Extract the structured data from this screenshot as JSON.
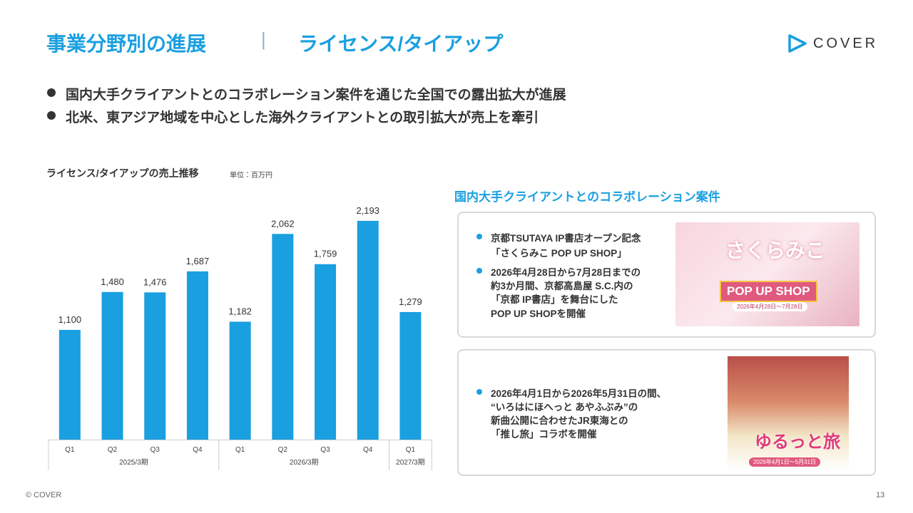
{
  "header": {
    "title": "事業分野別の進展",
    "separator": "|",
    "subtitle": "ライセンス/タイアップ",
    "logo": "COVER"
  },
  "bullets": [
    "国内大手クライアントとのコラボレーション案件を通じた全国での露出拡大が進展",
    "北米、東アジア地域を中心とした海外クライアントとの取引拡大が売上を牽引"
  ],
  "chart_data": {
    "type": "bar",
    "title": "ライセンス/タイアップの売上推移",
    "unit": "単位：百万円",
    "color": "#1a9fe0",
    "groups": [
      {
        "label": "2025/3期",
        "categories": [
          "Q1",
          "Q2",
          "Q3",
          "Q4"
        ],
        "values": [
          1100,
          1480,
          1476,
          1687
        ],
        "value_labels": [
          "1,100",
          "1,480",
          "1,476",
          "1,687"
        ]
      },
      {
        "label": "2026/3期",
        "categories": [
          "Q1",
          "Q2",
          "Q3",
          "Q4"
        ],
        "values": [
          1182,
          2062,
          1759,
          2193
        ],
        "value_labels": [
          "1,182",
          "2,062",
          "1,759",
          "2,193"
        ]
      },
      {
        "label": "2027/3期",
        "categories": [
          "Q1"
        ],
        "values": [
          1279
        ],
        "value_labels": [
          "1,279"
        ]
      }
    ]
  },
  "collab": {
    "title": "国内大手クライアントとのコラボレーション案件",
    "cards": [
      {
        "items": [
          {
            "lines": [
              "京都TSUTAYA IP書店オープン記念",
              "「さくらみこ POP UP SHOP」"
            ]
          },
          {
            "lines": [
              "2026年4月28日から7月28日までの",
              "約3か月間、京都高島屋 S.C.内の",
              "「京都 IP書店」を舞台にした",
              "POP UP SHOPを開催"
            ]
          }
        ],
        "image_texts": [
          "さくらみこ",
          "POP UP SHOP",
          "2026年4月28日〜7月28日"
        ]
      },
      {
        "items": [
          {
            "lines": [
              "2026年4月1日から2026年5月31日の間、",
              "“いろはにほへっと あやふぶみ”の",
              "新曲公開に合わせたJR東海との",
              "「推し旅」コラボを開催"
            ]
          }
        ],
        "image_texts": [
          "ゆるっと旅",
          "2026年4月1日〜5月31日"
        ]
      }
    ]
  },
  "footer": {
    "copyright": "© COVER",
    "page": "13"
  }
}
